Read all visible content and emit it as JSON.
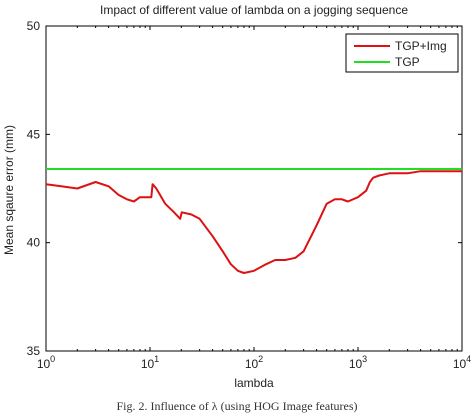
{
  "chart_data": {
    "type": "line",
    "title": "Impact of different value of lambda on a jogging sequence",
    "xlabel": "lambda",
    "ylabel": "Mean sqaure error (mm)",
    "xscale": "log",
    "xlim": [
      1,
      10000
    ],
    "ylim": [
      35,
      50
    ],
    "x_ticks": [
      {
        "value": 1,
        "base": "10",
        "exp": "0"
      },
      {
        "value": 10,
        "base": "10",
        "exp": "1"
      },
      {
        "value": 100,
        "base": "10",
        "exp": "2"
      },
      {
        "value": 1000,
        "base": "10",
        "exp": "3"
      },
      {
        "value": 10000,
        "base": "10",
        "exp": "4"
      }
    ],
    "y_ticks": [
      35,
      40,
      45,
      50
    ],
    "legend_position": "top-right",
    "grid": false,
    "series": [
      {
        "name": "TGP+Img",
        "color": "#dd1111",
        "points": [
          [
            1,
            42.7
          ],
          [
            1.4,
            42.6
          ],
          [
            2,
            42.5
          ],
          [
            3,
            42.8
          ],
          [
            4,
            42.6
          ],
          [
            5,
            42.2
          ],
          [
            6,
            42.0
          ],
          [
            7,
            41.9
          ],
          [
            8,
            42.1
          ],
          [
            9.5,
            42.1
          ],
          [
            10.3,
            42.1
          ],
          [
            10.6,
            42.7
          ],
          [
            11.5,
            42.5
          ],
          [
            14,
            41.8
          ],
          [
            17,
            41.4
          ],
          [
            19.5,
            41.1
          ],
          [
            20.2,
            41.4
          ],
          [
            25,
            41.3
          ],
          [
            30,
            41.1
          ],
          [
            40,
            40.3
          ],
          [
            50,
            39.6
          ],
          [
            60,
            39.0
          ],
          [
            70,
            38.7
          ],
          [
            80,
            38.6
          ],
          [
            100,
            38.7
          ],
          [
            130,
            39.0
          ],
          [
            160,
            39.2
          ],
          [
            200,
            39.2
          ],
          [
            250,
            39.3
          ],
          [
            300,
            39.6
          ],
          [
            400,
            40.8
          ],
          [
            500,
            41.8
          ],
          [
            600,
            42.0
          ],
          [
            700,
            42.0
          ],
          [
            800,
            41.9
          ],
          [
            1000,
            42.1
          ],
          [
            1200,
            42.4
          ],
          [
            1300,
            42.8
          ],
          [
            1400,
            43.0
          ],
          [
            1600,
            43.1
          ],
          [
            2000,
            43.2
          ],
          [
            3000,
            43.2
          ],
          [
            4000,
            43.3
          ],
          [
            6000,
            43.3
          ],
          [
            10000,
            43.3
          ]
        ]
      },
      {
        "name": "TGP",
        "color": "#22dd22",
        "points": [
          [
            1,
            43.4
          ],
          [
            10000,
            43.4
          ]
        ]
      }
    ],
    "caption": "Fig. 2.   Influence of λ (using HOG Image features)"
  }
}
